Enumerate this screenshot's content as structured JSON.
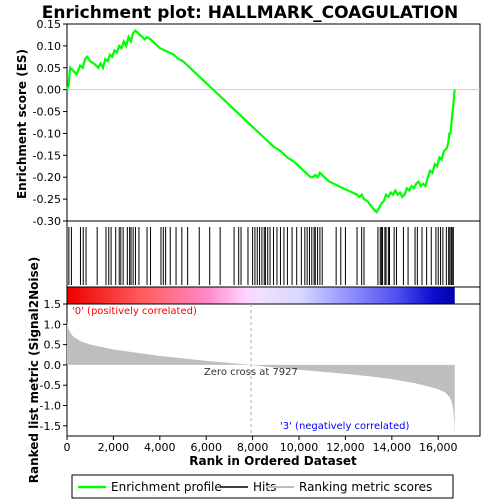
{
  "chart_data": {
    "type": "line",
    "title": "Enrichment plot: HALLMARK_COAGULATION",
    "es_panel": {
      "ylabel": "Enrichment score (ES)",
      "ylim": [
        -0.3,
        0.15
      ],
      "yticks": [
        "0.15",
        "0.10",
        "0.05",
        "0.00",
        "-0.05",
        "-0.10",
        "-0.15",
        "-0.20",
        "-0.25",
        "-0.30"
      ],
      "series": [
        {
          "name": "Enrichment profile",
          "color": "#00ff00",
          "x": [
            0,
            70,
            140,
            330,
            420,
            560,
            680,
            780,
            870,
            1000,
            1150,
            1250,
            1350,
            1450,
            1550,
            1650,
            1760,
            1850,
            1950,
            2050,
            2150,
            2250,
            2350,
            2450,
            2550,
            2650,
            2750,
            2850,
            2950,
            3050,
            3150,
            3250,
            3350,
            3450,
            3600,
            3800,
            4000,
            4200,
            4400,
            4600,
            4800,
            5000,
            5300,
            5600,
            5900,
            6200,
            6500,
            6800,
            7100,
            7400,
            7700,
            8000,
            8300,
            8600,
            8900,
            9200,
            9500,
            9800,
            10100,
            10300,
            10400,
            10500,
            10600,
            10700,
            10800,
            10900,
            11000,
            11100,
            11300,
            11500,
            11700,
            11900,
            12100,
            12300,
            12500,
            12600,
            12700,
            12800,
            12950,
            13100,
            13250,
            13350,
            13450,
            13550,
            13650,
            13750,
            13850,
            13950,
            14050,
            14150,
            14250,
            14350,
            14450,
            14550,
            14650,
            14750,
            14850,
            14950,
            15050,
            15150,
            15250,
            15350,
            15450,
            15550,
            15650,
            15750,
            15850,
            15950,
            16050,
            16150,
            16250,
            16350,
            16420,
            16480,
            16530,
            16580,
            16620,
            16660,
            16690,
            16710
          ],
          "values": [
            0.0,
            0.01,
            0.05,
            0.04,
            0.035,
            0.055,
            0.05,
            0.07,
            0.075,
            0.065,
            0.06,
            0.055,
            0.05,
            0.06,
            0.05,
            0.07,
            0.065,
            0.08,
            0.075,
            0.09,
            0.085,
            0.1,
            0.095,
            0.11,
            0.1,
            0.12,
            0.11,
            0.13,
            0.135,
            0.13,
            0.125,
            0.12,
            0.115,
            0.12,
            0.115,
            0.105,
            0.095,
            0.09,
            0.085,
            0.08,
            0.07,
            0.065,
            0.05,
            0.035,
            0.02,
            0.005,
            -0.01,
            -0.025,
            -0.04,
            -0.055,
            -0.07,
            -0.085,
            -0.1,
            -0.115,
            -0.13,
            -0.14,
            -0.155,
            -0.165,
            -0.18,
            -0.19,
            -0.195,
            -0.2,
            -0.2,
            -0.195,
            -0.2,
            -0.19,
            -0.195,
            -0.2,
            -0.21,
            -0.215,
            -0.22,
            -0.225,
            -0.23,
            -0.235,
            -0.24,
            -0.245,
            -0.24,
            -0.25,
            -0.255,
            -0.265,
            -0.275,
            -0.28,
            -0.27,
            -0.26,
            -0.255,
            -0.24,
            -0.245,
            -0.235,
            -0.24,
            -0.23,
            -0.24,
            -0.235,
            -0.245,
            -0.24,
            -0.225,
            -0.23,
            -0.22,
            -0.225,
            -0.215,
            -0.21,
            -0.22,
            -0.215,
            -0.22,
            -0.2,
            -0.185,
            -0.19,
            -0.17,
            -0.175,
            -0.155,
            -0.16,
            -0.14,
            -0.135,
            -0.125,
            -0.1,
            -0.1,
            -0.07,
            -0.05,
            -0.03,
            -0.01,
            0.0
          ]
        }
      ]
    },
    "hits_panel": {
      "legend_label": "Hits",
      "positions": [
        80,
        190,
        580,
        700,
        820,
        1300,
        1680,
        1800,
        1900,
        2100,
        2250,
        2320,
        2420,
        2600,
        2700,
        2760,
        2850,
        2950,
        3100,
        3450,
        3600,
        4050,
        4150,
        4250,
        4450,
        4700,
        4950,
        5200,
        5700,
        6150,
        6600,
        7200,
        7400,
        7500,
        7800,
        8000,
        8100,
        8200,
        8300,
        8400,
        8500,
        8550,
        8650,
        8750,
        8900,
        9050,
        9200,
        9350,
        9500,
        9700,
        9900,
        10100,
        10250,
        10350,
        10450,
        10550,
        10650,
        10700,
        10800,
        10900,
        11000,
        11600,
        11800,
        12000,
        12500,
        12700,
        12800,
        13400,
        13500,
        13550,
        13600,
        13700,
        13750,
        13850,
        13900,
        14100,
        14200,
        14500,
        14700,
        15000,
        15100,
        15300,
        15500,
        15700,
        15900,
        16000,
        16100,
        16200,
        16350,
        16450,
        16500,
        16560,
        16600,
        16650
      ]
    },
    "metric_panel": {
      "ylabel": "Ranked list metric (Signal2Noise)",
      "xlabel": "Rank in Ordered Dataset",
      "legend_label": "Ranking metric scores",
      "ylim": [
        -1.75,
        1.5
      ],
      "yticks": [
        "1.5",
        "1.0",
        "0.5",
        "0.0",
        "-0.5",
        "-1.0",
        "-1.5"
      ],
      "xlim": [
        0,
        17800
      ],
      "xticks": [
        "0",
        "2,000",
        "4,000",
        "6,000",
        "8,000",
        "10,000",
        "12,000",
        "14,000",
        "16,000"
      ],
      "x": [
        0,
        50,
        150,
        300,
        600,
        1000,
        2000,
        3000,
        4000,
        5000,
        6000,
        7000,
        7927,
        9000,
        10000,
        11000,
        12000,
        13000,
        14000,
        15000,
        15500,
        16000,
        16300,
        16500,
        16600,
        16650,
        16690,
        16710
      ],
      "values": [
        1.05,
        0.9,
        0.78,
        0.68,
        0.58,
        0.5,
        0.38,
        0.3,
        0.22,
        0.16,
        0.1,
        0.05,
        0.0,
        -0.07,
        -0.12,
        -0.17,
        -0.22,
        -0.28,
        -0.35,
        -0.45,
        -0.52,
        -0.6,
        -0.68,
        -0.8,
        -0.95,
        -1.1,
        -1.4,
        -1.75
      ],
      "zero_cross_label": "Zero cross at 7927",
      "pos_label": "'0' (positively correlated)",
      "neg_label": "'3' (negatively correlated)",
      "pos_label_color": "#ff0000",
      "neg_label_color": "#0000ff"
    },
    "n_genes": 16710,
    "legend_position": "bottom"
  },
  "legend": {
    "items": [
      {
        "label": "Enrichment profile",
        "color": "#00ff00"
      },
      {
        "label": "Hits",
        "color": "#000000"
      },
      {
        "label": "Ranking metric scores",
        "color": "#bebebe"
      }
    ]
  }
}
